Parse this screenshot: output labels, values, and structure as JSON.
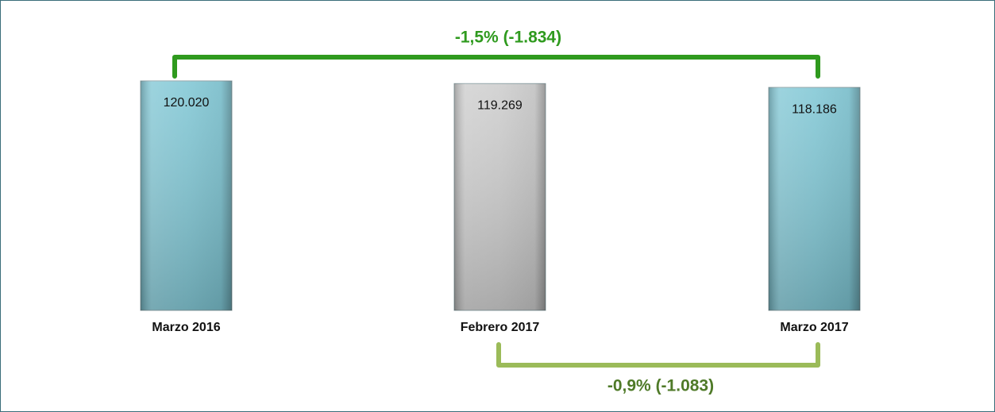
{
  "chart_data": {
    "type": "bar",
    "categories": [
      "Marzo 2016",
      "Febrero 2017",
      "Marzo 2017"
    ],
    "values": [
      120020,
      119269,
      118186
    ],
    "value_labels": [
      "120.020",
      "119.269",
      "118.186"
    ],
    "colors": [
      "#7ec6d4",
      "#cccccc",
      "#7ec6d4"
    ],
    "ylim": [
      55000,
      121000
    ],
    "annotations": [
      {
        "text": "-1,5% (-1.834)",
        "color": "#2f9a1e"
      },
      {
        "text": "-0,9% (-1.083)",
        "color": "#9bbb59"
      }
    ]
  }
}
